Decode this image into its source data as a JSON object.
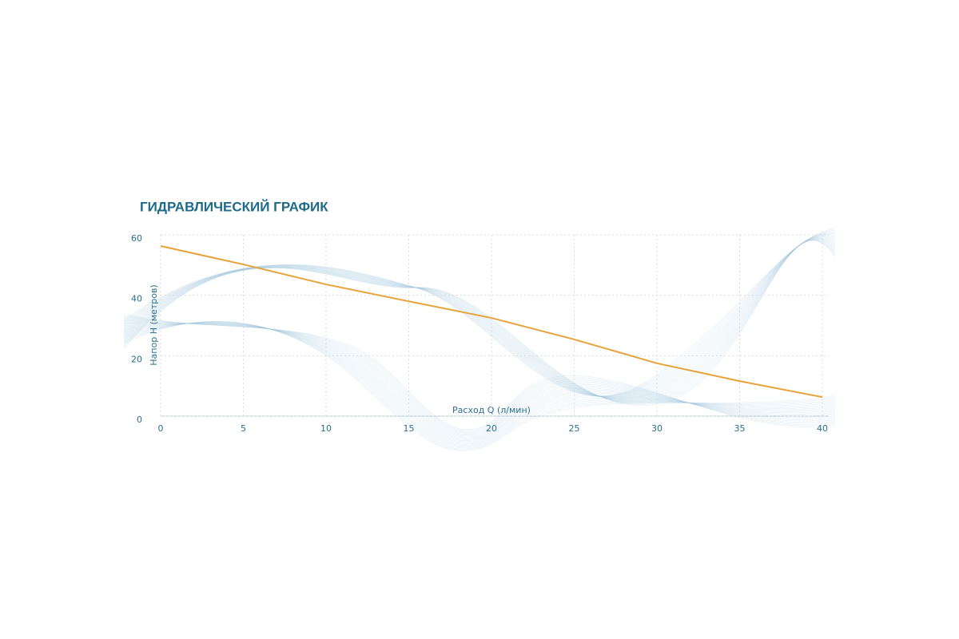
{
  "chart_data": {
    "type": "line",
    "title": "ГИДРАВЛИЧЕСКИЙ ГРАФИК",
    "x_label": "Расход Q (л/мин)",
    "y_label": "Напор H (метров)",
    "x": [
      0,
      5,
      10,
      15,
      20,
      25,
      30,
      35,
      40
    ],
    "series": [
      {
        "name": "Напор",
        "color": "#e8a23a",
        "values": [
          56.3,
          50.2,
          43.6,
          38,
          32.5,
          25.4,
          17.5,
          11.6,
          6.3
        ]
      }
    ],
    "xlim": [
      0,
      40
    ],
    "ylim": [
      0,
      60
    ],
    "xticks": [
      0,
      5,
      10,
      15,
      20,
      25,
      30,
      35,
      40
    ],
    "yticks": [
      0,
      20,
      40,
      60
    ],
    "grid": true
  }
}
